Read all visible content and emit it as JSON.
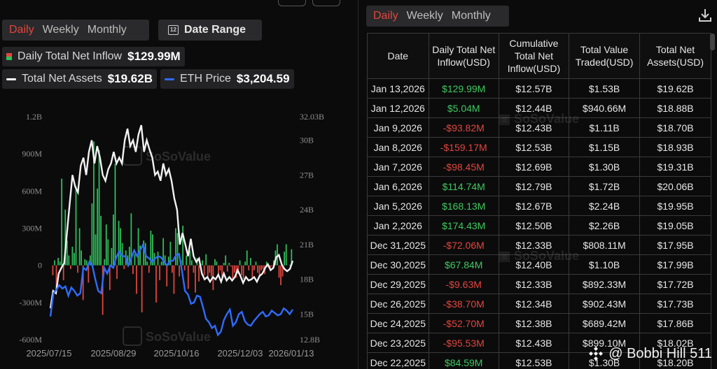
{
  "left_tabs": {
    "daily": "Daily",
    "weekly": "Weekly",
    "monthly": "Monthly"
  },
  "date_range": {
    "label": "Date Range",
    "icon": "calendar-icon",
    "cal_num": "12"
  },
  "legends": {
    "inflow": {
      "label": "Daily Total Net Inflow",
      "value": "$129.99M"
    },
    "assets": {
      "label": "Total Net Assets",
      "value": "$19.62B",
      "color": "#ffffff"
    },
    "eth": {
      "label": "ETH Price",
      "value": "$3,204.59",
      "color": "#2f6cff"
    }
  },
  "right_tabs": {
    "daily": "Daily",
    "weekly": "Weekly",
    "monthly": "Monthly"
  },
  "download_icon": "download-icon",
  "table": {
    "headers": [
      "Date",
      "Daily Total Net Inflow(USD)",
      "Cumulative Total Net Inflow(USD)",
      "Total Value Traded(USD)",
      "Total Net Assets(USD)"
    ],
    "rows": [
      [
        "Jan 13,2026",
        "$129.99M",
        "$12.57B",
        "$1.53B",
        "$19.62B"
      ],
      [
        "Jan 12,2026",
        "$5.04M",
        "$12.44B",
        "$940.66M",
        "$18.88B"
      ],
      [
        "Jan 9,2026",
        "-$93.82M",
        "$12.43B",
        "$1.11B",
        "$18.70B"
      ],
      [
        "Jan 8,2026",
        "-$159.17M",
        "$12.53B",
        "$1.15B",
        "$18.93B"
      ],
      [
        "Jan 7,2026",
        "-$98.45M",
        "$12.69B",
        "$1.30B",
        "$19.31B"
      ],
      [
        "Jan 6,2026",
        "$114.74M",
        "$12.79B",
        "$1.72B",
        "$20.06B"
      ],
      [
        "Jan 5,2026",
        "$168.13M",
        "$12.67B",
        "$2.24B",
        "$19.95B"
      ],
      [
        "Jan 2,2026",
        "$174.43M",
        "$12.50B",
        "$2.26B",
        "$19.05B"
      ],
      [
        "Dec 31,2025",
        "-$72.06M",
        "$12.33B",
        "$808.11M",
        "$17.95B"
      ],
      [
        "Dec 30,2025",
        "$67.84M",
        "$12.40B",
        "$1.10B",
        "$17.99B"
      ],
      [
        "Dec 29,2025",
        "-$9.63M",
        "$12.33B",
        "$892.33M",
        "$17.72B"
      ],
      [
        "Dec 26,2025",
        "-$38.70M",
        "$12.34B",
        "$902.43M",
        "$17.73B"
      ],
      [
        "Dec 24,2025",
        "-$52.70M",
        "$12.38B",
        "$689.42M",
        "$17.86B"
      ],
      [
        "Dec 23,2025",
        "-$95.53M",
        "$12.43B",
        "$899.10M",
        "$18.02B"
      ],
      [
        "Dec 22,2025",
        "$84.59M",
        "$12.53B",
        "$1.30B",
        "$18.20B"
      ]
    ]
  },
  "watermark": {
    "text": "@ Bobbi Hill 511",
    "logo": "sosovalue-logo"
  },
  "chart_data": {
    "type": "bar+line",
    "x_ticks": [
      "2025/07/15",
      "2025/08/29",
      "2025/10/16",
      "2025/12/03",
      "2026/01/13"
    ],
    "y_left_ticks": [
      "1.2B",
      "900M",
      "600M",
      "300M",
      "0",
      "-300M",
      "-600M"
    ],
    "y_right_ticks": [
      "32.03B",
      "30B",
      "27B",
      "24B",
      "21B",
      "18B",
      "15B",
      "12.8B"
    ],
    "ylim_left": [
      -600,
      1200
    ],
    "ylim_right": [
      12.8,
      32.03
    ],
    "series": [
      {
        "name": "Daily Total Net Inflow",
        "type": "bar",
        "unit": "M USD",
        "values": [
          0,
          -80,
          40,
          -200,
          60,
          30,
          700,
          -120,
          450,
          200,
          80,
          -30,
          150,
          100,
          640,
          -60,
          300,
          120,
          -280,
          50,
          40,
          -140,
          80,
          500,
          1000,
          250,
          620,
          930,
          400,
          -400,
          50,
          330,
          210,
          -200,
          140,
          410,
          820,
          -110,
          360,
          300,
          180,
          -30,
          120,
          80,
          150,
          420,
          -70,
          90,
          -230,
          300,
          160,
          -380,
          200,
          180,
          30,
          -60,
          280,
          250,
          100,
          -300,
          110,
          -120,
          30,
          220,
          80,
          -170,
          70,
          190,
          -60,
          -230,
          300,
          260,
          -90,
          40,
          320,
          -40,
          80,
          -190,
          120,
          40,
          -60,
          -220,
          60,
          -130,
          10,
          40,
          -80,
          90,
          -100,
          -60,
          -90,
          -200,
          50,
          30,
          -70,
          -40,
          -100,
          20,
          80,
          -50,
          20,
          -10,
          -110,
          -60,
          -100,
          -70,
          40,
          -80,
          -110,
          30,
          120,
          -40,
          60,
          -100,
          -40,
          30,
          -60,
          -90,
          -40,
          -30,
          -70,
          30,
          -20,
          -40,
          -10,
          40,
          120,
          170,
          -100,
          -160,
          -90,
          110,
          170,
          0,
          5,
          130
        ]
      },
      {
        "name": "Total Net Assets",
        "type": "line",
        "unit": "B USD",
        "values": [
          15.5,
          17,
          16.8,
          18.5,
          19,
          19.4,
          22,
          24.5,
          27,
          26,
          25.5,
          27.8,
          28.5,
          27,
          29,
          30,
          28,
          29.5,
          28.5,
          27,
          26.5,
          27.5,
          28,
          29,
          28,
          28.5,
          28,
          30,
          31,
          29.5,
          30,
          29,
          30.5,
          31.3,
          29,
          30,
          29.2,
          28.5,
          27,
          27.3,
          26.5,
          28,
          27,
          27.5,
          26.5,
          25,
          24,
          21,
          22,
          21,
          20,
          21.5,
          20,
          19.5,
          19.8,
          18.5,
          18,
          18.2,
          17.8,
          18.2,
          18,
          18.4,
          17.8,
          18.5,
          17.9,
          18.2,
          17.9,
          18.2,
          18.8,
          18.3,
          17.7,
          18.2,
          17.9,
          18,
          18.2,
          17.8,
          18.3,
          18.5,
          19,
          19.3,
          18.8,
          19,
          19.9,
          20.1,
          19.3,
          18.9,
          18.7,
          18.9,
          19.6
        ]
      },
      {
        "name": "ETH Price",
        "type": "line",
        "unit": "B USD (right axis)",
        "values": [
          14.8,
          16.8,
          17.1,
          17.5,
          17.2,
          17.4,
          16.6,
          17.3,
          17.0,
          16.6,
          16.8,
          19.0,
          18.8,
          19.5,
          19.2,
          18.0,
          17.0,
          16.8,
          19.0,
          18.5,
          19.2,
          19.0,
          19.9,
          20.4,
          20.0,
          20.0,
          19.2,
          19.8,
          20.5,
          20.0,
          20.5,
          21.0,
          20.0,
          19.8,
          19.5,
          19.8,
          20.0,
          19.9,
          19.5,
          19.2,
          19.6,
          19.6,
          20.1,
          20.2,
          18.7,
          17.0,
          16.7,
          15.9,
          16.0,
          16.6,
          16.5,
          15.6,
          14.6,
          14.3,
          13.8,
          14.0,
          13.2,
          13.5,
          14.5,
          15.0,
          15.4,
          14.0,
          14.3,
          15.0,
          15.2,
          14.4,
          14.1,
          14.0,
          14.4,
          14.7,
          15.0,
          15.2,
          14.8,
          14.9,
          15.3,
          15.1,
          14.9,
          15.0,
          15.5,
          15.3,
          15.0,
          15.4
        ]
      }
    ]
  }
}
